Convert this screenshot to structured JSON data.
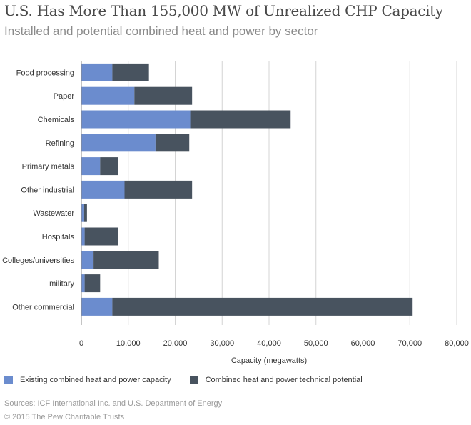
{
  "chart_data": {
    "type": "bar",
    "title": "U.S. Has More Than 155,000 MW of Unrealized CHP Capacity",
    "subtitle": "Installed and potential combined heat and power by sector",
    "stacked": true,
    "orientation": "horizontal",
    "categories": [
      "Food processing",
      "Paper",
      "Chemicals",
      "Refining",
      "Primary metals",
      "Other industrial",
      "Wastewater",
      "Hospitals",
      "Colleges/universities",
      "military",
      "Other commercial"
    ],
    "series": [
      {
        "name": "Existing combined heat and power capacity",
        "color": "#6b8cce",
        "values": [
          6600,
          11300,
          23200,
          15800,
          4000,
          9200,
          600,
          700,
          2600,
          700,
          6600
        ]
      },
      {
        "name": "Combined heat and power technical potential",
        "color": "#48535f",
        "values": [
          7800,
          12300,
          21400,
          7200,
          3900,
          14400,
          600,
          7200,
          13900,
          3300,
          64000
        ]
      }
    ],
    "xlabel": "Capacity (megawatts)",
    "ylabel": "",
    "xlim": [
      0,
      80000
    ],
    "xticks": [
      0,
      10000,
      20000,
      30000,
      40000,
      50000,
      60000,
      70000,
      80000
    ],
    "xtick_labels": [
      "0",
      "10,000",
      "20,000",
      "30,000",
      "40,000",
      "50,000",
      "60,000",
      "70,000",
      "80,000"
    ],
    "grid": true,
    "legend_position": "bottom"
  },
  "sources": "Sources: ICF International Inc. and U.S. Department of Energy",
  "copyright": "© 2015 The Pew Charitable Trusts"
}
